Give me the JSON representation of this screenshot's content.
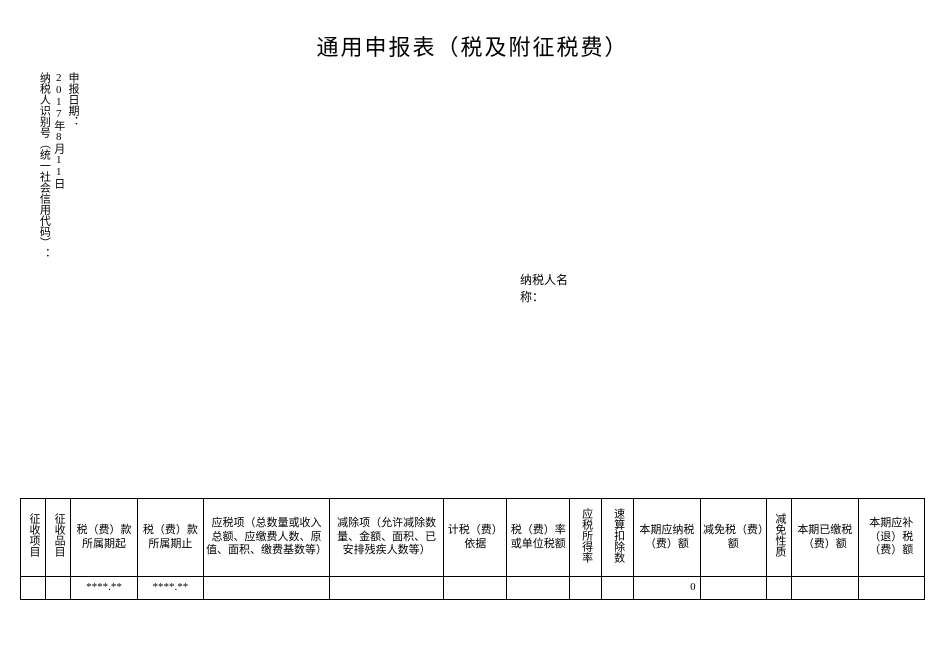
{
  "title": "通用申报表（税及附征税费）",
  "meta": {
    "report_date_label": "申报日期：",
    "report_date_value": "2017年8月11日",
    "taxpayer_id_label": "纳税人识别号（统一社会信用代码）：",
    "taxpayer_name_label": "纳税人名称："
  },
  "table": {
    "columns": [
      "征收项目",
      "征收品目",
      "税（费）款所属期起",
      "税（费）款所属期止",
      "应税项（总数量或收入总额、应缴费人数、原值、面积、缴费基数等）",
      "减除项（允许减除数量、金额、面积、已安排残疾人数等）",
      "计税（费）依据",
      "税（费）率或单位税额",
      "应税所得率",
      "速算扣除数",
      "本期应纳税（费）额",
      "减免税（费）额",
      "减免性质",
      "本期已缴税（费）额",
      "本期应补（退）税（费）额"
    ],
    "row": {
      "col0": "",
      "col1": "",
      "col2": "****.**",
      "col3": "****.**",
      "col4": "",
      "col5": "",
      "col6": "",
      "col7": "",
      "col8": "",
      "col9": "",
      "col10": "0",
      "col11": "",
      "col12": "",
      "col13": "",
      "col14": ""
    }
  },
  "style": {
    "background_color": "#ffffff",
    "text_color": "#000000",
    "border_color": "#000000",
    "title_fontsize": 22,
    "body_fontsize": 12,
    "table_fontsize": 11,
    "font_family": "SimSun"
  }
}
